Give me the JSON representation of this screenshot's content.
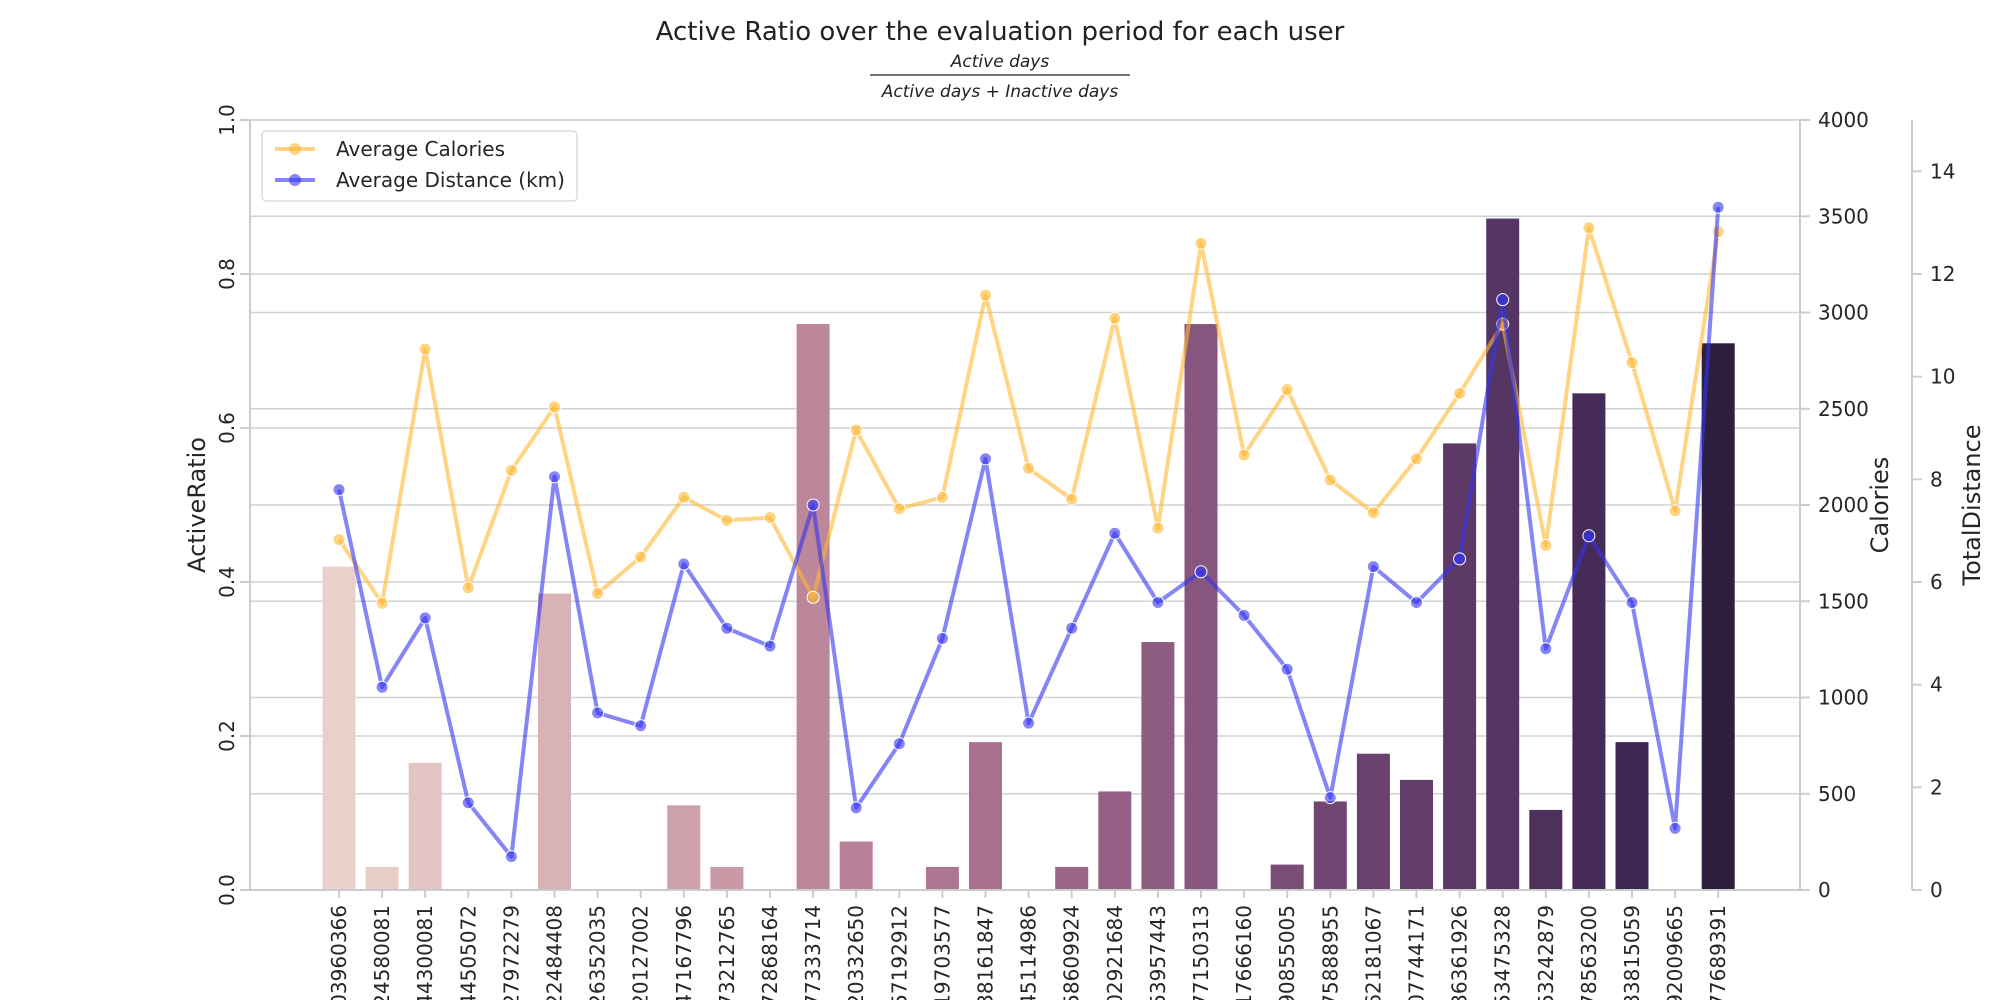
{
  "chart_data": {
    "type": "bar",
    "title": "Active Ratio over the evaluation period for each user",
    "formula": {
      "numerator": "Active days",
      "denominator": "Active days + Inactive days"
    },
    "xlabel": "",
    "ylabel": "ActiveRatio",
    "y2label": "Calories",
    "y3label": "TotalDistance",
    "ylim": [
      0,
      1.0
    ],
    "y2lim": [
      0,
      4000
    ],
    "y3lim": [
      0,
      15
    ],
    "yticks": [
      "0.0",
      "0.2",
      "0.4",
      "0.6",
      "0.8",
      "1.0"
    ],
    "y2ticks": [
      "0",
      "500",
      "1000",
      "1500",
      "2000",
      "2500",
      "3000",
      "3500",
      "4000"
    ],
    "y3ticks": [
      "0",
      "2",
      "4",
      "6",
      "8",
      "10",
      "12",
      "14"
    ],
    "categories": [
      "03960366",
      "24580081",
      "44300081",
      "44505072",
      "27972279",
      "22484408",
      "26352035",
      "20127002",
      "47167796",
      "73212765",
      "72868164",
      "77333714",
      "20332650",
      "57192912",
      "19703577",
      "38161847",
      "45114986",
      "58609924",
      "02921684",
      "53957443",
      "77150313",
      "17666160",
      "90855005",
      "75888955",
      "62181067",
      "07744171",
      "36361926",
      "53475328",
      "53242879",
      "78563200",
      "33815059",
      "92009665",
      "77689391"
    ],
    "series": [
      {
        "name": "",
        "kind": "bar",
        "axis": "ActiveRatio",
        "values": [
          0.42,
          0.03,
          0.165,
          0.0,
          0.0,
          0.385,
          0.0,
          0.0,
          0.11,
          0.03,
          0.0,
          0.735,
          0.063,
          0.0,
          0.03,
          0.192,
          0.0,
          0.03,
          0.128,
          0.322,
          0.735,
          0.0,
          0.033,
          0.115,
          0.177,
          0.143,
          0.58,
          0.872,
          0.104,
          0.645,
          0.192,
          0.0,
          0.71
        ],
        "colors": [
          "#e8d0cb",
          "#e6cdc8",
          "#e2c4c2",
          "#e0c1bf",
          "#ddbcbb",
          "#d9b2b5",
          "#d6acb1",
          "#d2a5ad",
          "#cea0a9",
          "#c99aa6",
          "#c592a2",
          "#bc879a",
          "#b7829a",
          "#b37c97",
          "#ad7693",
          "#a86f8f",
          "#a26a8c",
          "#9b6589",
          "#956085",
          "#8e5c81",
          "#87567f",
          "#80517b",
          "#7a4d77",
          "#724672",
          "#6b426f",
          "#643e6b",
          "#5d3966",
          "#553563",
          "#4e305d",
          "#462b58",
          "#3e2652",
          "#36224c",
          "#2e1e3f"
        ]
      },
      {
        "name": "Average Calories",
        "kind": "line",
        "axis": "Calories",
        "color": "#ffb732",
        "values": [
          1820,
          1490,
          2810,
          1570,
          2180,
          2510,
          1540,
          1730,
          2040,
          1920,
          1935,
          1520,
          2390,
          1980,
          2040,
          3090,
          2190,
          2030,
          2970,
          1880,
          3360,
          2260,
          2600,
          2130,
          1960,
          2240,
          2580,
          2940,
          1790,
          3440,
          2740,
          1970,
          3420
        ]
      },
      {
        "name": "Average Distance (km)",
        "kind": "line",
        "axis": "TotalDistance",
        "color": "#3333ee",
        "values": [
          7.8,
          3.95,
          5.3,
          1.7,
          0.65,
          8.05,
          3.45,
          3.2,
          6.35,
          5.1,
          4.75,
          7.5,
          1.6,
          2.85,
          4.9,
          8.4,
          3.25,
          5.1,
          6.95,
          5.6,
          6.2,
          5.35,
          4.3,
          1.8,
          6.3,
          5.6,
          6.45,
          11.5,
          4.7,
          6.9,
          5.6,
          1.2,
          13.3
        ]
      }
    ],
    "legend": {
      "placement": "top-left",
      "entries": [
        "Average Calories",
        "Average Distance (km)"
      ]
    },
    "grid": true
  }
}
